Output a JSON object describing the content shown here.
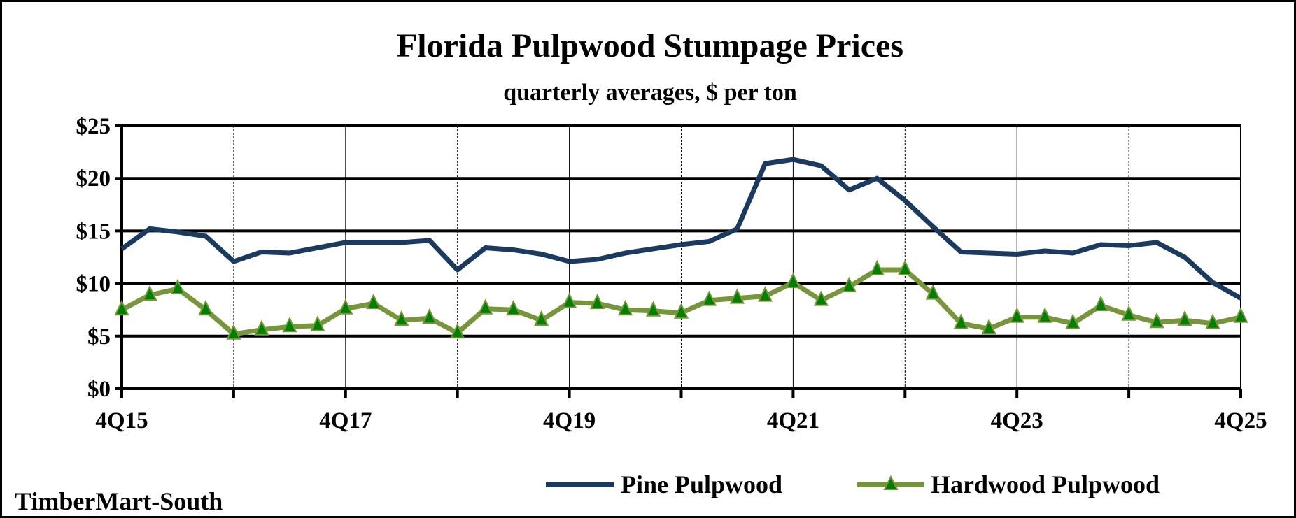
{
  "chart_data": {
    "type": "line",
    "title": "Florida Pulpwood Stumpage Prices",
    "subtitle": "quarterly averages, $ per ton",
    "source": "TimberMart-South",
    "xlabel": "",
    "ylabel": "",
    "ylim": [
      0,
      25
    ],
    "yticks": [
      0,
      5,
      10,
      15,
      20,
      25
    ],
    "ytick_labels": [
      "$0",
      "$5",
      "$10",
      "$15",
      "$20",
      "$25"
    ],
    "xtick_labels": [
      "4Q15",
      "4Q17",
      "4Q19",
      "4Q21",
      "4Q23",
      "4Q25"
    ],
    "x_count": 41,
    "grid": true,
    "legend_position": "bottom-right",
    "series": [
      {
        "name": "Pine Pulpwood",
        "color": "#1b3a5f",
        "marker": "none",
        "values": [
          13.3,
          15.2,
          14.9,
          14.5,
          12.1,
          13.0,
          12.9,
          13.4,
          13.9,
          13.9,
          13.9,
          14.1,
          11.3,
          13.4,
          13.2,
          12.8,
          12.1,
          12.3,
          12.9,
          13.3,
          13.7,
          14.0,
          15.2,
          21.4,
          21.8,
          21.2,
          18.9,
          20.0,
          17.9,
          15.4,
          13.0,
          12.9,
          12.8,
          13.1,
          12.9,
          13.7,
          13.6,
          13.9,
          12.5,
          10.1,
          8.6
        ]
      },
      {
        "name": "Hardwood Pulpwood",
        "color": "#77963c",
        "marker": "triangle",
        "marker_color": "#008000",
        "values": [
          7.5,
          8.9,
          9.5,
          7.5,
          5.2,
          5.6,
          5.9,
          6.0,
          7.6,
          8.1,
          6.5,
          6.7,
          5.3,
          7.6,
          7.5,
          6.5,
          8.2,
          8.1,
          7.5,
          7.4,
          7.2,
          8.4,
          8.6,
          8.8,
          10.1,
          8.4,
          9.7,
          11.3,
          11.3,
          9.0,
          6.2,
          5.7,
          6.8,
          6.8,
          6.2,
          7.9,
          7.0,
          6.3,
          6.5,
          6.2,
          6.8
        ]
      }
    ]
  }
}
